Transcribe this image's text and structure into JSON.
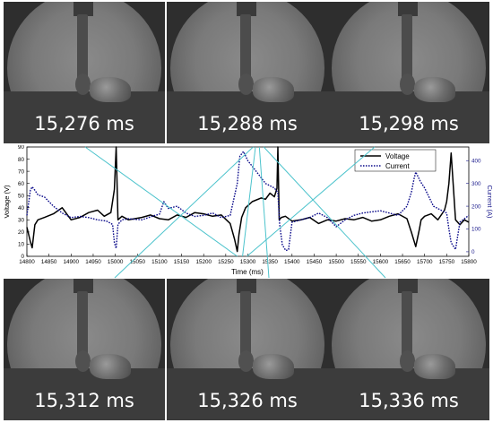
{
  "frames": [
    {
      "time": "15,276 ms"
    },
    {
      "time": "15,288 ms"
    },
    {
      "time": "15,298 ms"
    },
    {
      "time": "15,312 ms"
    },
    {
      "time": "15,326 ms"
    },
    {
      "time": "15,336 ms"
    }
  ],
  "chart_data": {
    "type": "line",
    "xlabel": "Time (ms)",
    "ylabel_left": "Voltage (V)",
    "ylabel_right": "Current (A)",
    "xlim": [
      14800,
      15800
    ],
    "ylim_left": [
      0,
      90
    ],
    "ylim_right": [
      -20,
      460
    ],
    "x_ticks": [
      14800,
      14850,
      14900,
      14950,
      15000,
      15050,
      15100,
      15150,
      15200,
      15250,
      15300,
      15350,
      15400,
      15450,
      15500,
      15550,
      15600,
      15650,
      15700,
      15750,
      15800
    ],
    "y_ticks_left": [
      0,
      10,
      20,
      30,
      40,
      50,
      60,
      70,
      80,
      90
    ],
    "y_ticks_right": [
      0,
      100,
      200,
      300,
      400
    ],
    "legend_position": "top-right",
    "series": [
      {
        "name": "Voltage",
        "color": "#000000",
        "style": "solid",
        "axis": "left",
        "x": [
          14800,
          14808,
          14812,
          14818,
          14825,
          14840,
          14860,
          14880,
          14900,
          14920,
          14940,
          14960,
          14975,
          14990,
          14998,
          15002,
          15006,
          15015,
          15030,
          15060,
          15080,
          15100,
          15120,
          15140,
          15160,
          15180,
          15200,
          15220,
          15240,
          15260,
          15270,
          15276,
          15280,
          15286,
          15295,
          15310,
          15330,
          15340,
          15350,
          15360,
          15366,
          15368,
          15371,
          15376,
          15385,
          15400,
          15420,
          15440,
          15460,
          15480,
          15500,
          15520,
          15540,
          15560,
          15580,
          15600,
          15620,
          15640,
          15660,
          15670,
          15680,
          15688,
          15692,
          15700,
          15715,
          15730,
          15745,
          15750,
          15755,
          15760,
          15770,
          15780,
          15790,
          15800
        ],
        "values": [
          24,
          12,
          7,
          26,
          30,
          32,
          35,
          40,
          30,
          32,
          36,
          38,
          33,
          36,
          55,
          90,
          30,
          33,
          30,
          32,
          34,
          31,
          30,
          34,
          32,
          36,
          35,
          33,
          34,
          27,
          14,
          4,
          18,
          32,
          40,
          45,
          48,
          47,
          52,
          49,
          56,
          90,
          30,
          32,
          33,
          29,
          30,
          32,
          27,
          30,
          29,
          31,
          30,
          32,
          29,
          30,
          33,
          35,
          31,
          20,
          8,
          22,
          30,
          33,
          35,
          30,
          38,
          45,
          60,
          85,
          30,
          26,
          30,
          28
        ]
      },
      {
        "name": "Current",
        "color": "#0a0a8a",
        "style": "dotted",
        "axis": "right",
        "x": [
          14800,
          14808,
          14812,
          14818,
          14825,
          14840,
          14860,
          14880,
          14900,
          14920,
          14940,
          14960,
          14980,
          14994,
          14998,
          15002,
          15006,
          15015,
          15030,
          15060,
          15090,
          15100,
          15110,
          15120,
          15140,
          15160,
          15180,
          15200,
          15220,
          15240,
          15260,
          15276,
          15282,
          15290,
          15300,
          15320,
          15340,
          15360,
          15368,
          15372,
          15378,
          15386,
          15392,
          15400,
          15420,
          15440,
          15460,
          15480,
          15500,
          15520,
          15540,
          15560,
          15580,
          15600,
          15620,
          15640,
          15660,
          15670,
          15676,
          15680,
          15690,
          15700,
          15720,
          15740,
          15750,
          15755,
          15760,
          15770,
          15780,
          15800
        ],
        "values": [
          160,
          270,
          285,
          270,
          250,
          240,
          200,
          170,
          150,
          155,
          150,
          140,
          135,
          120,
          40,
          15,
          120,
          140,
          145,
          140,
          160,
          165,
          220,
          190,
          200,
          170,
          155,
          160,
          170,
          150,
          160,
          300,
          420,
          440,
          400,
          350,
          300,
          280,
          260,
          120,
          30,
          5,
          10,
          130,
          140,
          150,
          170,
          150,
          110,
          140,
          160,
          170,
          175,
          180,
          170,
          160,
          200,
          260,
          320,
          350,
          310,
          280,
          200,
          180,
          170,
          100,
          40,
          10,
          130,
          160
        ]
      }
    ],
    "connector_color": "#4cc3cc"
  }
}
